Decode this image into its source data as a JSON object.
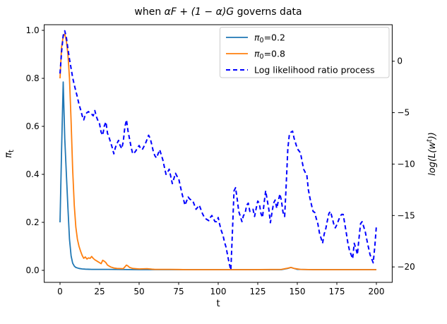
{
  "title": {
    "prefix": "when ",
    "math": "αF + (1 − α)G",
    "suffix": " governs data"
  },
  "axes": {
    "x": {
      "label": "t",
      "tick_labels": [
        "0",
        "25",
        "50",
        "75",
        "100",
        "125",
        "150",
        "175",
        "200"
      ],
      "tick_values": [
        0,
        25,
        50,
        75,
        100,
        125,
        150,
        175,
        200
      ]
    },
    "y_left": {
      "label_sym": "π",
      "label_sub": "t",
      "tick_labels": [
        "0.0",
        "0.2",
        "0.4",
        "0.6",
        "0.8",
        "1.0"
      ],
      "tick_values": [
        0.0,
        0.2,
        0.4,
        0.6,
        0.8,
        1.0
      ]
    },
    "y_right": {
      "label_pre": "log(L(w",
      "label_sup": "t",
      "label_post": "))",
      "tick_labels": [
        "0",
        "−5",
        "−10",
        "−15",
        "−20"
      ],
      "tick_values": [
        0,
        -5,
        -10,
        -15,
        -20
      ]
    }
  },
  "legend": {
    "items": [
      {
        "sym": "π",
        "sub": "0",
        "rest": "=0.2",
        "label_plain": "",
        "color": "#1f77b4",
        "dash": false
      },
      {
        "sym": "π",
        "sub": "0",
        "rest": "=0.8",
        "label_plain": "",
        "color": "#ff7f0e",
        "dash": false
      },
      {
        "sym": "",
        "sub": "",
        "rest": "",
        "label_plain": "Log likelihood ratio process",
        "color": "#0000ff",
        "dash": true
      }
    ]
  },
  "chart_data": {
    "type": "line",
    "xlabel": "t",
    "ylabel_left": "pi_t",
    "ylabel_right": "log(L(w^t))",
    "xlim": [
      -10,
      210
    ],
    "ylim_left": [
      -0.05,
      1.0235
    ],
    "ylim_right": [
      -21.5,
      3.55
    ],
    "grid": false,
    "legend_position": "upper right",
    "series": [
      {
        "name": "pi0=0.2",
        "axis": "left",
        "color": "#1f77b4",
        "dash": false,
        "width": 1.8,
        "points": [
          [
            0,
            0.2
          ],
          [
            1,
            0.5
          ],
          [
            2,
            0.785
          ],
          [
            3,
            0.55
          ],
          [
            4,
            0.4
          ],
          [
            5,
            0.26
          ],
          [
            6,
            0.13
          ],
          [
            7,
            0.06
          ],
          [
            8,
            0.03
          ],
          [
            9,
            0.018
          ],
          [
            10,
            0.012
          ],
          [
            12,
            0.008
          ],
          [
            14,
            0.006
          ],
          [
            16,
            0.005
          ],
          [
            20,
            0.004
          ],
          [
            30,
            0.004
          ],
          [
            50,
            0.003
          ],
          [
            80,
            0.003
          ],
          [
            120,
            0.003
          ],
          [
            140,
            0.003
          ],
          [
            144,
            0.008
          ],
          [
            146,
            0.012
          ],
          [
            148,
            0.008
          ],
          [
            150,
            0.004
          ],
          [
            160,
            0.003
          ],
          [
            200,
            0.003
          ]
        ]
      },
      {
        "name": "pi0=0.8",
        "axis": "left",
        "color": "#ff7f0e",
        "dash": false,
        "width": 1.8,
        "points": [
          [
            0,
            0.8
          ],
          [
            1,
            0.93
          ],
          [
            2,
            0.975
          ],
          [
            3,
            0.985
          ],
          [
            4,
            0.955
          ],
          [
            5,
            0.9
          ],
          [
            6,
            0.8
          ],
          [
            7,
            0.62
          ],
          [
            8,
            0.42
          ],
          [
            9,
            0.27
          ],
          [
            10,
            0.18
          ],
          [
            11,
            0.13
          ],
          [
            12,
            0.1
          ],
          [
            13,
            0.08
          ],
          [
            14,
            0.062
          ],
          [
            15,
            0.05
          ],
          [
            16,
            0.056
          ],
          [
            17,
            0.047
          ],
          [
            18,
            0.052
          ],
          [
            19,
            0.05
          ],
          [
            20,
            0.058
          ],
          [
            21,
            0.05
          ],
          [
            22,
            0.044
          ],
          [
            23,
            0.04
          ],
          [
            24,
            0.036
          ],
          [
            25,
            0.032
          ],
          [
            26,
            0.028
          ],
          [
            27,
            0.042
          ],
          [
            28,
            0.038
          ],
          [
            29,
            0.032
          ],
          [
            30,
            0.022
          ],
          [
            32,
            0.014
          ],
          [
            34,
            0.01
          ],
          [
            36,
            0.008
          ],
          [
            40,
            0.007
          ],
          [
            42,
            0.022
          ],
          [
            43,
            0.018
          ],
          [
            44,
            0.012
          ],
          [
            46,
            0.008
          ],
          [
            50,
            0.006
          ],
          [
            55,
            0.007
          ],
          [
            58,
            0.005
          ],
          [
            60,
            0.004
          ],
          [
            70,
            0.004
          ],
          [
            80,
            0.003
          ],
          [
            100,
            0.003
          ],
          [
            120,
            0.003
          ],
          [
            140,
            0.004
          ],
          [
            144,
            0.009
          ],
          [
            146,
            0.012
          ],
          [
            148,
            0.008
          ],
          [
            152,
            0.004
          ],
          [
            160,
            0.003
          ],
          [
            180,
            0.003
          ],
          [
            200,
            0.003
          ]
        ]
      },
      {
        "name": "Log likelihood ratio process",
        "axis": "right",
        "color": "#0000ff",
        "dash": true,
        "width": 2,
        "points": [
          [
            0,
            -1.2
          ],
          [
            1,
            0.9
          ],
          [
            2,
            2.5
          ],
          [
            3,
            2.95
          ],
          [
            4,
            2.3
          ],
          [
            5,
            1.2
          ],
          [
            6,
            0.2
          ],
          [
            7,
            -0.7
          ],
          [
            8,
            -1.6
          ],
          [
            9,
            -2.3
          ],
          [
            10,
            -2.9
          ],
          [
            11,
            -3.5
          ],
          [
            12,
            -4.2
          ],
          [
            13,
            -4.7
          ],
          [
            14,
            -5.3
          ],
          [
            15,
            -5.7
          ],
          [
            16,
            -5.2
          ],
          [
            17,
            -5.0
          ],
          [
            18,
            -4.9
          ],
          [
            19,
            -5.1
          ],
          [
            20,
            -5.15
          ],
          [
            21,
            -5.3
          ],
          [
            22,
            -4.8
          ],
          [
            23,
            -5.4
          ],
          [
            24,
            -5.8
          ],
          [
            25,
            -6.1
          ],
          [
            26,
            -6.9
          ],
          [
            27,
            -7.2
          ],
          [
            28,
            -6.3
          ],
          [
            29,
            -5.9
          ],
          [
            30,
            -7.0
          ],
          [
            31,
            -7.4
          ],
          [
            32,
            -7.9
          ],
          [
            33,
            -8.4
          ],
          [
            34,
            -9.0
          ],
          [
            35,
            -8.4
          ],
          [
            36,
            -8.0
          ],
          [
            37,
            -7.7
          ],
          [
            38,
            -8.2
          ],
          [
            39,
            -8.5
          ],
          [
            40,
            -7.8
          ],
          [
            41,
            -6.4
          ],
          [
            42,
            -5.7
          ],
          [
            43,
            -6.8
          ],
          [
            44,
            -7.6
          ],
          [
            45,
            -8.4
          ],
          [
            46,
            -9.0
          ],
          [
            47,
            -8.9
          ],
          [
            48,
            -8.7
          ],
          [
            49,
            -8.4
          ],
          [
            50,
            -8.2
          ],
          [
            51,
            -8.5
          ],
          [
            52,
            -8.6
          ],
          [
            53,
            -8.3
          ],
          [
            54,
            -8.0
          ],
          [
            55,
            -7.6
          ],
          [
            56,
            -7.2
          ],
          [
            57,
            -7.5
          ],
          [
            58,
            -8.1
          ],
          [
            59,
            -8.8
          ],
          [
            60,
            -9.2
          ],
          [
            61,
            -9.4
          ],
          [
            62,
            -9.0
          ],
          [
            63,
            -8.6
          ],
          [
            64,
            -9.1
          ],
          [
            65,
            -9.6
          ],
          [
            66,
            -10.3
          ],
          [
            67,
            -11.0
          ],
          [
            68,
            -10.8
          ],
          [
            69,
            -10.5
          ],
          [
            70,
            -11.2
          ],
          [
            71,
            -11.9
          ],
          [
            72,
            -11.4
          ],
          [
            73,
            -10.9
          ],
          [
            74,
            -11.2
          ],
          [
            75,
            -11.4
          ],
          [
            76,
            -12.1
          ],
          [
            77,
            -12.8
          ],
          [
            78,
            -13.4
          ],
          [
            79,
            -14.0
          ],
          [
            80,
            -13.6
          ],
          [
            81,
            -13.2
          ],
          [
            82,
            -13.4
          ],
          [
            83,
            -13.5
          ],
          [
            84,
            -13.6
          ],
          [
            85,
            -14.0
          ],
          [
            86,
            -14.4
          ],
          [
            87,
            -14.2
          ],
          [
            88,
            -14.0
          ],
          [
            89,
            -14.4
          ],
          [
            90,
            -14.8
          ],
          [
            91,
            -15.1
          ],
          [
            92,
            -15.3
          ],
          [
            93,
            -15.4
          ],
          [
            94,
            -15.5
          ],
          [
            95,
            -15.2
          ],
          [
            96,
            -15.0
          ],
          [
            97,
            -15.3
          ],
          [
            98,
            -15.6
          ],
          [
            99,
            -15.6
          ],
          [
            100,
            -15.2
          ],
          [
            101,
            -15.9
          ],
          [
            102,
            -16.5
          ],
          [
            103,
            -16.9
          ],
          [
            104,
            -17.6
          ],
          [
            105,
            -18.1
          ],
          [
            106,
            -18.9
          ],
          [
            107,
            -19.7
          ],
          [
            108,
            -20.3
          ],
          [
            109,
            -16.5
          ],
          [
            110,
            -12.6
          ],
          [
            111,
            -12.3
          ],
          [
            112,
            -13.4
          ],
          [
            113,
            -14.6
          ],
          [
            114,
            -15.1
          ],
          [
            115,
            -15.6
          ],
          [
            116,
            -15.0
          ],
          [
            117,
            -14.8
          ],
          [
            118,
            -14.0
          ],
          [
            119,
            -13.8
          ],
          [
            120,
            -14.6
          ],
          [
            121,
            -14.5
          ],
          [
            122,
            -14.4
          ],
          [
            123,
            -15.1
          ],
          [
            124,
            -14.3
          ],
          [
            125,
            -13.6
          ],
          [
            126,
            -13.8
          ],
          [
            127,
            -14.8
          ],
          [
            128,
            -15.2
          ],
          [
            129,
            -13.8
          ],
          [
            130,
            -12.6
          ],
          [
            131,
            -13.5
          ],
          [
            132,
            -14.4
          ],
          [
            133,
            -15.7
          ],
          [
            134,
            -14.7
          ],
          [
            135,
            -13.8
          ],
          [
            136,
            -13.5
          ],
          [
            137,
            -14.3
          ],
          [
            138,
            -13.6
          ],
          [
            139,
            -12.9
          ],
          [
            140,
            -13.6
          ],
          [
            141,
            -14.7
          ],
          [
            142,
            -15.1
          ],
          [
            143,
            -12.0
          ],
          [
            144,
            -8.5
          ],
          [
            145,
            -7.1
          ],
          [
            146,
            -6.9
          ],
          [
            147,
            -6.8
          ],
          [
            148,
            -7.5
          ],
          [
            149,
            -8.0
          ],
          [
            150,
            -8.5
          ],
          [
            151,
            -8.7
          ],
          [
            152,
            -8.9
          ],
          [
            153,
            -9.7
          ],
          [
            154,
            -10.5
          ],
          [
            155,
            -10.8
          ],
          [
            156,
            -11.0
          ],
          [
            157,
            -12.5
          ],
          [
            158,
            -13.3
          ],
          [
            159,
            -14.0
          ],
          [
            160,
            -14.6
          ],
          [
            161,
            -14.7
          ],
          [
            162,
            -15.3
          ],
          [
            163,
            -15.8
          ],
          [
            164,
            -16.7
          ],
          [
            165,
            -17.2
          ],
          [
            166,
            -17.7
          ],
          [
            167,
            -16.8
          ],
          [
            168,
            -16.3
          ],
          [
            169,
            -15.5
          ],
          [
            170,
            -14.8
          ],
          [
            171,
            -14.6
          ],
          [
            172,
            -15.2
          ],
          [
            173,
            -15.8
          ],
          [
            174,
            -16.2
          ],
          [
            175,
            -15.9
          ],
          [
            176,
            -15.5
          ],
          [
            177,
            -15.1
          ],
          [
            178,
            -14.9
          ],
          [
            179,
            -14.9
          ],
          [
            180,
            -15.8
          ],
          [
            181,
            -16.7
          ],
          [
            182,
            -17.7
          ],
          [
            183,
            -18.4
          ],
          [
            184,
            -18.8
          ],
          [
            185,
            -19.2
          ],
          [
            186,
            -17.7
          ],
          [
            187,
            -18.2
          ],
          [
            188,
            -18.8
          ],
          [
            189,
            -17.2
          ],
          [
            190,
            -15.8
          ],
          [
            191,
            -15.6
          ],
          [
            192,
            -16.1
          ],
          [
            193,
            -16.6
          ],
          [
            194,
            -17.4
          ],
          [
            195,
            -18.1
          ],
          [
            196,
            -18.8
          ],
          [
            197,
            -19.2
          ],
          [
            198,
            -19.6
          ],
          [
            199,
            -18.0
          ],
          [
            200,
            -16.0
          ]
        ]
      }
    ]
  }
}
